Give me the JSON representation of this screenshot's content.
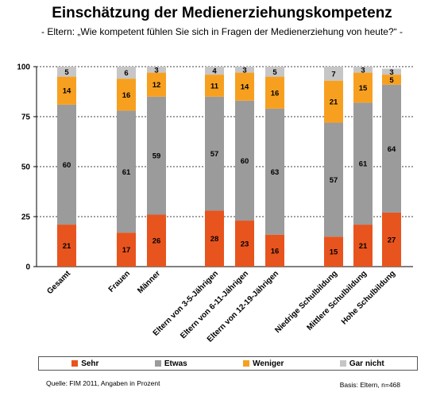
{
  "page": {
    "title": "Einschätzung der Medienerziehungskompetenz",
    "subtitle": "- Eltern: „Wie kompetent fühlen Sie sich in Fragen der Medienerziehung von heute?“ -",
    "source": "Quelle: FIM 2011, Angaben in Prozent",
    "basis": "Basis: Eltern, n=468"
  },
  "chart_data": {
    "type": "bar",
    "stacked": true,
    "categories": [
      "Gesamt",
      "Frauen",
      "Männer",
      "Eltern von 3-5-Jährigen",
      "Eltern von 6-11-Jährigen",
      "Eltern von 12-19-Jährigen",
      "Niedrige Schulbildung",
      "Mittlere Schulbildung",
      "Hohe Schulbildung"
    ],
    "series": [
      {
        "name": "Sehr",
        "color": "#E8541E",
        "values": [
          21,
          17,
          26,
          28,
          23,
          16,
          15,
          21,
          27
        ]
      },
      {
        "name": "Etwas",
        "color": "#9B9B9B",
        "values": [
          60,
          61,
          59,
          57,
          60,
          63,
          57,
          61,
          64
        ]
      },
      {
        "name": "Weniger",
        "color": "#F7A020",
        "values": [
          14,
          16,
          12,
          11,
          14,
          16,
          21,
          15,
          5
        ]
      },
      {
        "name": "Gar nicht",
        "color": "#C6C6C6",
        "values": [
          5,
          6,
          3,
          4,
          3,
          5,
          7,
          3,
          3
        ]
      }
    ],
    "ylim": [
      0,
      100
    ],
    "yticks": [
      0,
      25,
      50,
      75,
      100
    ],
    "grid": true,
    "legend_position": "bottom"
  }
}
